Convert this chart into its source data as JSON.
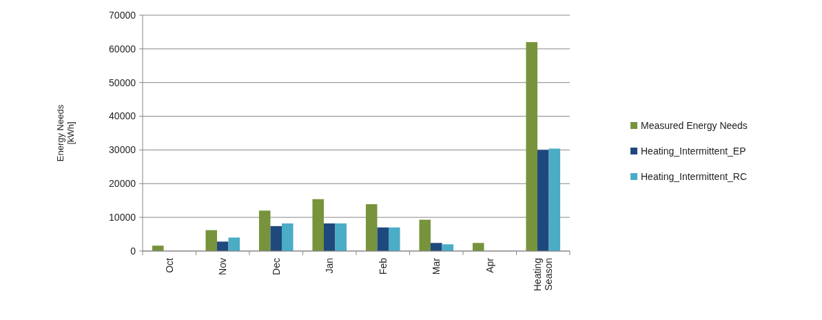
{
  "chart_data": {
    "type": "bar",
    "ylabel": "Energy Needs [kWh]",
    "categories": [
      "Oct",
      "Nov",
      "Dec",
      "Jan",
      "Feb",
      "Mar",
      "Apr",
      "Heating Season"
    ],
    "series": [
      {
        "name": "Measured Energy Needs",
        "color": "#77933c",
        "values": [
          1600,
          6200,
          12000,
          15400,
          13900,
          9300,
          2400,
          62000
        ]
      },
      {
        "name": "Heating_Intermittent_EP",
        "color": "#1f497d",
        "values": [
          null,
          2800,
          7400,
          8200,
          7000,
          2400,
          null,
          30000
        ]
      },
      {
        "name": "Heating_Intermittent_RC",
        "color": "#4bacc6",
        "values": [
          null,
          4000,
          8200,
          8200,
          7000,
          2000,
          null,
          30400
        ]
      }
    ],
    "ylim": [
      0,
      70000
    ],
    "yticks": [
      0,
      10000,
      20000,
      30000,
      40000,
      50000,
      60000,
      70000
    ],
    "grid": "y",
    "legend": "right"
  }
}
